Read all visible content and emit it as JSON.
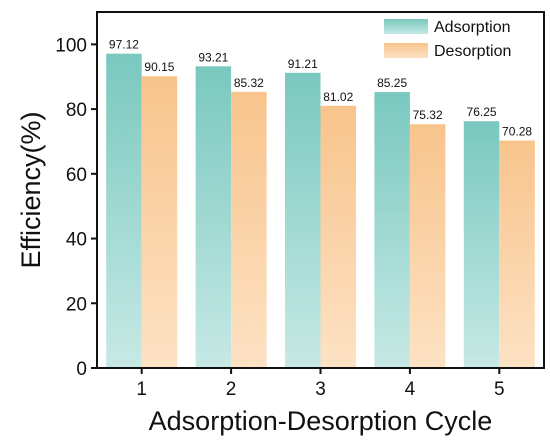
{
  "chart_data": {
    "type": "bar",
    "title": "",
    "xlabel": "Adsorption-Desorption Cycle",
    "ylabel": "Efficiency(%)",
    "categories": [
      "1",
      "2",
      "3",
      "4",
      "5"
    ],
    "series": [
      {
        "name": "Adsorption",
        "values": [
          97.12,
          93.21,
          91.21,
          85.25,
          76.25
        ],
        "labels": [
          "97.12",
          "93.21",
          "91.21",
          "85.25",
          "76.25"
        ]
      },
      {
        "name": "Desorption",
        "values": [
          90.15,
          85.32,
          81.02,
          75.32,
          70.28
        ],
        "labels": [
          "90.15",
          "85.32",
          "81.02",
          "75.32",
          "70.28"
        ]
      }
    ],
    "ylim": [
      0,
      110
    ],
    "yticks": [
      0,
      20,
      40,
      60,
      80,
      100
    ],
    "grid": false,
    "legend_position": "top-right",
    "colors": {
      "Adsorption": {
        "top": "#79c8bf",
        "bottom": "#c7e9e5"
      },
      "Desorption": {
        "top": "#f8c48c",
        "bottom": "#fde2c4"
      }
    }
  }
}
